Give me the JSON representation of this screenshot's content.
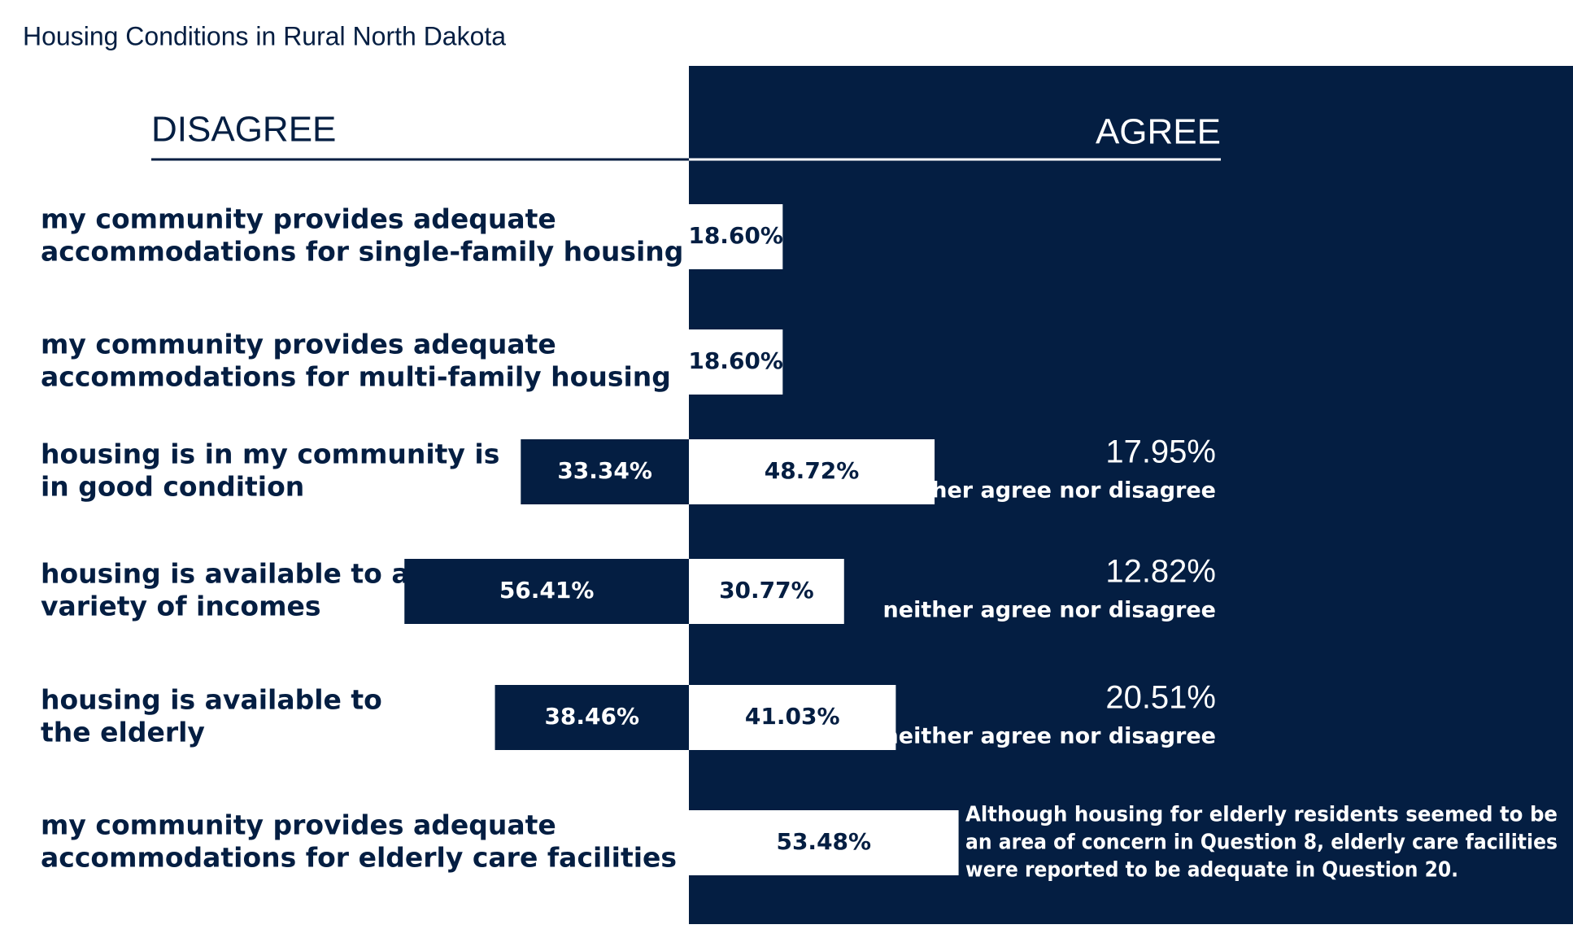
{
  "chart_data": {
    "type": "diverging-bar",
    "title": "Housing Conditions in Rural North Dakota",
    "left_label": "DISAGREE",
    "right_label": "AGREE",
    "categories": [
      [
        "my community provides adequate",
        "accommodations for single-family housing"
      ],
      [
        "my community provides adequate",
        "accommodations for multi-family housing"
      ],
      [
        "housing is in my community is",
        "in good condition"
      ],
      [
        "housing is available to a",
        "variety of incomes"
      ],
      [
        "housing is available to",
        "the elderly"
      ],
      [
        "my community provides adequate",
        "accommodations for elderly care facilities"
      ]
    ],
    "series": [
      {
        "name": "DISAGREE",
        "color": "#041e42",
        "values": [
          null,
          null,
          33.34,
          56.41,
          38.46,
          null
        ],
        "value_labels": [
          null,
          null,
          "33.34%",
          "56.41%",
          "38.46%",
          null
        ]
      },
      {
        "name": "AGREE",
        "color": "#ffffff",
        "values": [
          18.6,
          18.6,
          48.72,
          30.77,
          41.03,
          53.48
        ],
        "value_labels": [
          "18.60%",
          "18.60%",
          "48.72%",
          "30.77%",
          "41.03%",
          "53.48%"
        ]
      },
      {
        "name": "neither agree nor disagree",
        "values": [
          null,
          null,
          17.95,
          12.82,
          20.51,
          null
        ],
        "value_labels": [
          null,
          null,
          "17.95%",
          "12.82%",
          "20.51%",
          null
        ]
      }
    ],
    "annotation": [
      "Although housing for elderly residents seemed to be",
      "an area of concern in Question 8, elderly care facilities",
      "were reported to be adequate in Question 20."
    ]
  }
}
